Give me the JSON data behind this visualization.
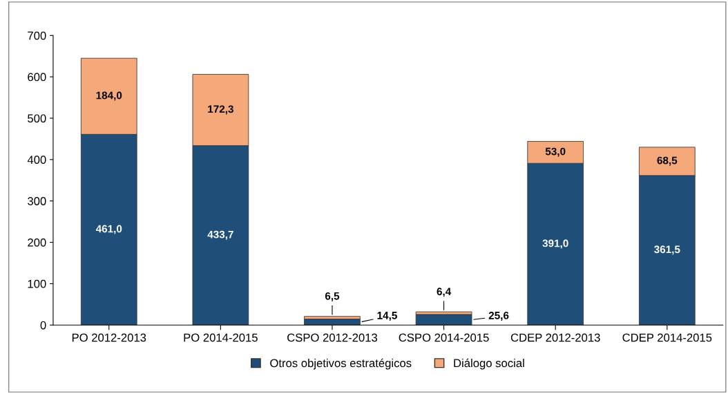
{
  "chart_data": {
    "type": "bar",
    "stacked": true,
    "categories": [
      "PO 2012-2013",
      "PO 2014-2015",
      "CSPO 2012-2013",
      "CSPO 2014-2015",
      "CDEP 2012-2013",
      "CDEP 2014-2015"
    ],
    "series": [
      {
        "name": "Otros objetivos estratégicos",
        "color": "#1f4e79",
        "values": [
          461.0,
          433.7,
          14.5,
          25.6,
          391.0,
          361.5
        ],
        "value_labels": [
          "461,0",
          "433,7",
          "14,5",
          "25,6",
          "391,0",
          "361,5"
        ]
      },
      {
        "name": "Diálogo social",
        "color": "#f5a97b",
        "values": [
          184.0,
          172.3,
          6.5,
          6.4,
          53.0,
          68.5
        ],
        "value_labels": [
          "184,0",
          "172,3",
          "6,5",
          "6,4",
          "53,0",
          "68,5"
        ]
      }
    ],
    "ylim": [
      0,
      700
    ],
    "yticks": [
      0,
      100,
      200,
      300,
      400,
      500,
      600,
      700
    ],
    "grid": false,
    "legend": "bottom"
  }
}
